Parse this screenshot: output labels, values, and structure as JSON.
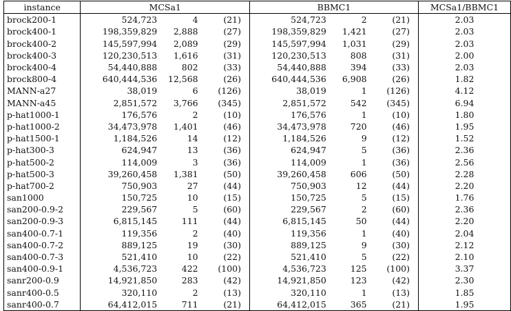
{
  "headers": {
    "instance": "instance",
    "group1": "MCSa1",
    "group2": "BBMC1",
    "ratio": "MCSa1/BBMC1"
  },
  "rows": [
    {
      "instance": "brock200-1",
      "m_nodes": "524,723",
      "m_time": "4",
      "m_color": "(21)",
      "b_nodes": "524,723",
      "b_time": "2",
      "b_color": "(21)",
      "ratio": "2.03"
    },
    {
      "instance": "brock400-1",
      "m_nodes": "198,359,829",
      "m_time": "2,888",
      "m_color": "(27)",
      "b_nodes": "198,359,829",
      "b_time": "1,421",
      "b_color": "(27)",
      "ratio": "2.03"
    },
    {
      "instance": "brock400-2",
      "m_nodes": "145,597,994",
      "m_time": "2,089",
      "m_color": "(29)",
      "b_nodes": "145,597,994",
      "b_time": "1,031",
      "b_color": "(29)",
      "ratio": "2.03"
    },
    {
      "instance": "brock400-3",
      "m_nodes": "120,230,513",
      "m_time": "1,616",
      "m_color": "(31)",
      "b_nodes": "120,230,513",
      "b_time": "808",
      "b_color": "(31)",
      "ratio": "2.00"
    },
    {
      "instance": "brock400-4",
      "m_nodes": "54,440,888",
      "m_time": "802",
      "m_color": "(33)",
      "b_nodes": "54,440,888",
      "b_time": "394",
      "b_color": "(33)",
      "ratio": "2.03"
    },
    {
      "instance": "brock800-4",
      "m_nodes": "640,444,536",
      "m_time": "12,568",
      "m_color": "(26)",
      "b_nodes": "640,444,536",
      "b_time": "6,908",
      "b_color": "(26)",
      "ratio": "1.82"
    },
    {
      "instance": "MANN-a27",
      "m_nodes": "38,019",
      "m_time": "6",
      "m_color": "(126)",
      "b_nodes": "38,019",
      "b_time": "1",
      "b_color": "(126)",
      "ratio": "4.12"
    },
    {
      "instance": "MANN-a45",
      "m_nodes": "2,851,572",
      "m_time": "3,766",
      "m_color": "(345)",
      "b_nodes": "2,851,572",
      "b_time": "542",
      "b_color": "(345)",
      "ratio": "6.94"
    },
    {
      "instance": "p-hat1000-1",
      "m_nodes": "176,576",
      "m_time": "2",
      "m_color": "(10)",
      "b_nodes": "176,576",
      "b_time": "1",
      "b_color": "(10)",
      "ratio": "1.80"
    },
    {
      "instance": "p-hat1000-2",
      "m_nodes": "34,473,978",
      "m_time": "1,401",
      "m_color": "(46)",
      "b_nodes": "34,473,978",
      "b_time": "720",
      "b_color": "(46)",
      "ratio": "1.95"
    },
    {
      "instance": "p-hat1500-1",
      "m_nodes": "1,184,526",
      "m_time": "14",
      "m_color": "(12)",
      "b_nodes": "1,184,526",
      "b_time": "9",
      "b_color": "(12)",
      "ratio": "1.52"
    },
    {
      "instance": "p-hat300-3",
      "m_nodes": "624,947",
      "m_time": "13",
      "m_color": "(36)",
      "b_nodes": "624,947",
      "b_time": "5",
      "b_color": "(36)",
      "ratio": "2.36"
    },
    {
      "instance": "p-hat500-2",
      "m_nodes": "114,009",
      "m_time": "3",
      "m_color": "(36)",
      "b_nodes": "114,009",
      "b_time": "1",
      "b_color": "(36)",
      "ratio": "2.56"
    },
    {
      "instance": "p-hat500-3",
      "m_nodes": "39,260,458",
      "m_time": "1,381",
      "m_color": "(50)",
      "b_nodes": "39,260,458",
      "b_time": "606",
      "b_color": "(50)",
      "ratio": "2.28"
    },
    {
      "instance": "p-hat700-2",
      "m_nodes": "750,903",
      "m_time": "27",
      "m_color": "(44)",
      "b_nodes": "750,903",
      "b_time": "12",
      "b_color": "(44)",
      "ratio": "2.20"
    },
    {
      "instance": "san1000",
      "m_nodes": "150,725",
      "m_time": "10",
      "m_color": "(15)",
      "b_nodes": "150,725",
      "b_time": "5",
      "b_color": "(15)",
      "ratio": "1.76"
    },
    {
      "instance": "san200-0.9-2",
      "m_nodes": "229,567",
      "m_time": "5",
      "m_color": "(60)",
      "b_nodes": "229,567",
      "b_time": "2",
      "b_color": "(60)",
      "ratio": "2.36"
    },
    {
      "instance": "san200-0.9-3",
      "m_nodes": "6,815,145",
      "m_time": "111",
      "m_color": "(44)",
      "b_nodes": "6,815,145",
      "b_time": "50",
      "b_color": "(44)",
      "ratio": "2.20"
    },
    {
      "instance": "san400-0.7-1",
      "m_nodes": "119,356",
      "m_time": "2",
      "m_color": "(40)",
      "b_nodes": "119,356",
      "b_time": "1",
      "b_color": "(40)",
      "ratio": "2.04"
    },
    {
      "instance": "san400-0.7-2",
      "m_nodes": "889,125",
      "m_time": "19",
      "m_color": "(30)",
      "b_nodes": "889,125",
      "b_time": "9",
      "b_color": "(30)",
      "ratio": "2.12"
    },
    {
      "instance": "san400-0.7-3",
      "m_nodes": "521,410",
      "m_time": "10",
      "m_color": "(22)",
      "b_nodes": "521,410",
      "b_time": "5",
      "b_color": "(22)",
      "ratio": "2.10"
    },
    {
      "instance": "san400-0.9-1",
      "m_nodes": "4,536,723",
      "m_time": "422",
      "m_color": "(100)",
      "b_nodes": "4,536,723",
      "b_time": "125",
      "b_color": "(100)",
      "ratio": "3.37"
    },
    {
      "instance": "sanr200-0.9",
      "m_nodes": "14,921,850",
      "m_time": "283",
      "m_color": "(42)",
      "b_nodes": "14,921,850",
      "b_time": "123",
      "b_color": "(42)",
      "ratio": "2.30"
    },
    {
      "instance": "sanr400-0.5",
      "m_nodes": "320,110",
      "m_time": "2",
      "m_color": "(13)",
      "b_nodes": "320,110",
      "b_time": "1",
      "b_color": "(13)",
      "ratio": "1.85"
    },
    {
      "instance": "sanr400-0.7",
      "m_nodes": "64,412,015",
      "m_time": "711",
      "m_color": "(21)",
      "b_nodes": "64,412,015",
      "b_time": "365",
      "b_color": "(21)",
      "ratio": "1.95"
    }
  ]
}
